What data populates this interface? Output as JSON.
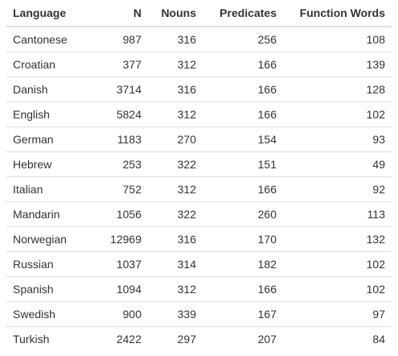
{
  "table": {
    "columns": [
      "Language",
      "N",
      "Nouns",
      "Predicates",
      "Function Words"
    ],
    "rows": [
      [
        "Cantonese",
        "987",
        "316",
        "256",
        "108"
      ],
      [
        "Croatian",
        "377",
        "312",
        "166",
        "139"
      ],
      [
        "Danish",
        "3714",
        "316",
        "166",
        "128"
      ],
      [
        "English",
        "5824",
        "312",
        "166",
        "102"
      ],
      [
        "German",
        "1183",
        "270",
        "154",
        "93"
      ],
      [
        "Hebrew",
        "253",
        "322",
        "151",
        "49"
      ],
      [
        "Italian",
        "752",
        "312",
        "166",
        "92"
      ],
      [
        "Mandarin",
        "1056",
        "322",
        "260",
        "113"
      ],
      [
        "Norwegian",
        "12969",
        "316",
        "170",
        "132"
      ],
      [
        "Russian",
        "1037",
        "314",
        "182",
        "102"
      ],
      [
        "Spanish",
        "1094",
        "312",
        "166",
        "102"
      ],
      [
        "Swedish",
        "900",
        "339",
        "167",
        "97"
      ],
      [
        "Turkish",
        "2422",
        "297",
        "207",
        "84"
      ]
    ]
  },
  "chart_data": {
    "type": "table",
    "columns": [
      "Language",
      "N",
      "Nouns",
      "Predicates",
      "Function Words"
    ],
    "rows": [
      [
        "Cantonese",
        987,
        316,
        256,
        108
      ],
      [
        "Croatian",
        377,
        312,
        166,
        139
      ],
      [
        "Danish",
        3714,
        316,
        166,
        128
      ],
      [
        "English",
        5824,
        312,
        166,
        102
      ],
      [
        "German",
        1183,
        270,
        154,
        93
      ],
      [
        "Hebrew",
        253,
        322,
        151,
        49
      ],
      [
        "Italian",
        752,
        312,
        166,
        92
      ],
      [
        "Mandarin",
        1056,
        322,
        260,
        113
      ],
      [
        "Norwegian",
        12969,
        316,
        170,
        132
      ],
      [
        "Russian",
        1037,
        314,
        182,
        102
      ],
      [
        "Spanish",
        1094,
        312,
        166,
        102
      ],
      [
        "Swedish",
        900,
        339,
        167,
        97
      ],
      [
        "Turkish",
        2422,
        297,
        207,
        84
      ]
    ]
  }
}
